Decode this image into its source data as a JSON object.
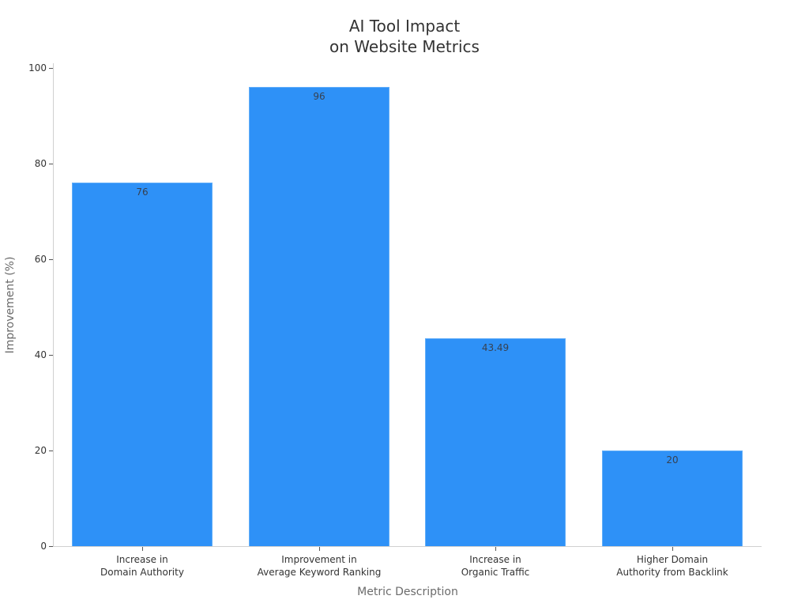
{
  "chart_data": {
    "type": "bar",
    "title": "AI Tool Impact\non Website Metrics",
    "title_lines": [
      "AI Tool Impact",
      "on Website Metrics"
    ],
    "xlabel": "Metric Description",
    "ylabel": "Improvement (%)",
    "categories": [
      "Increase in\nDomain Authority",
      "Improvement in\nAverage Keyword Ranking",
      "Increase in\nOrganic Traffic",
      "Higher Domain\nAuthority from Backlink"
    ],
    "values": [
      76,
      96,
      43.49,
      20
    ],
    "value_labels": [
      "76",
      "96",
      "43.49",
      "20"
    ],
    "ylim": [
      0,
      100
    ],
    "yticks": [
      0,
      20,
      40,
      60,
      80,
      100
    ],
    "grid": false,
    "legend": null,
    "bar_color": "#2e91f7"
  }
}
